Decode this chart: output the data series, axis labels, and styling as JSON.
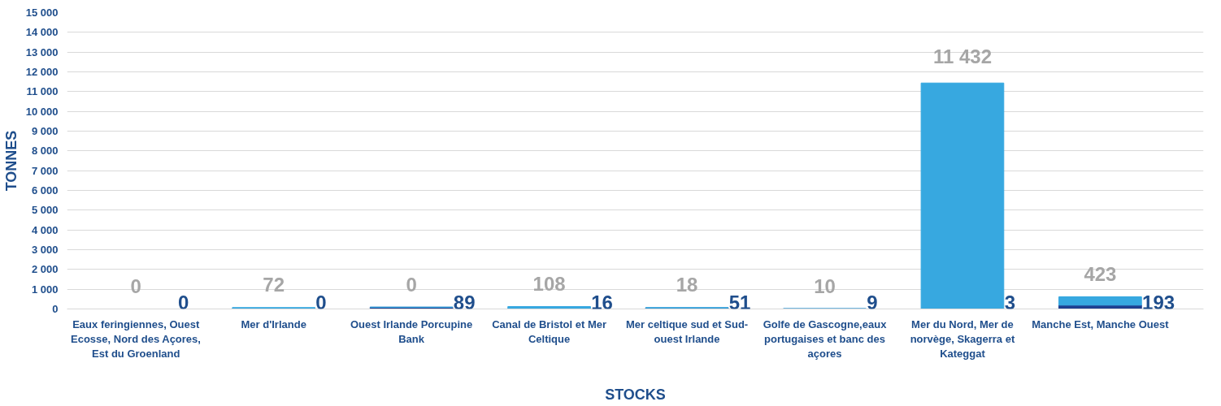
{
  "chart_data": {
    "type": "bar",
    "stacked": true,
    "xlabel": "STOCKS",
    "ylabel": "TONNES",
    "categories": [
      "Eaux feringiennes, Ouest Ecosse, Nord des Açores, Est du Groenland",
      "Mer d'Irlande",
      "Ouest Irlande Porcupine Bank",
      "Canal de Bristol et Mer Celtique",
      "Mer celtique sud et Sud-ouest Irlande",
      "Golfe de Gascogne,eaux portugaises et banc des açores",
      "Mer du Nord, Mer de norvège, Skagerra et Kateggat",
      "Manche Est, Manche Ouest"
    ],
    "series": [
      {
        "color": "#1f3f8f",
        "values": [
          0,
          0,
          89,
          16,
          51,
          9,
          3,
          193
        ]
      },
      {
        "color": "#37a8e0",
        "values": [
          0,
          72,
          0,
          108,
          18,
          10,
          11432,
          423
        ]
      }
    ],
    "ylim": [
      0,
      15000
    ],
    "yticks": [
      0,
      {
        "value": 1000,
        "label": "1 000"
      },
      {
        "value": 2000,
        "label": "2 000"
      },
      {
        "value": 3000,
        "label": "3 000"
      },
      {
        "value": 4000,
        "label": "4 000"
      },
      {
        "value": 5000,
        "label": "5 000"
      },
      {
        "value": 6000,
        "label": "6 000"
      },
      {
        "value": 7000,
        "label": "7 000"
      },
      {
        "value": 8000,
        "label": "8 000"
      },
      {
        "value": 9000,
        "label": "9 000"
      },
      {
        "value": 10000,
        "label": "10 000"
      },
      {
        "value": 11000,
        "label": "11 000"
      },
      {
        "value": 12000,
        "label": "12 000"
      },
      {
        "value": 13000,
        "label": "13 000"
      },
      {
        "value": 14000,
        "label": "14 000"
      },
      {
        "value": 15000,
        "label": "15 000"
      }
    ],
    "grid": "y",
    "data_labels": true
  }
}
